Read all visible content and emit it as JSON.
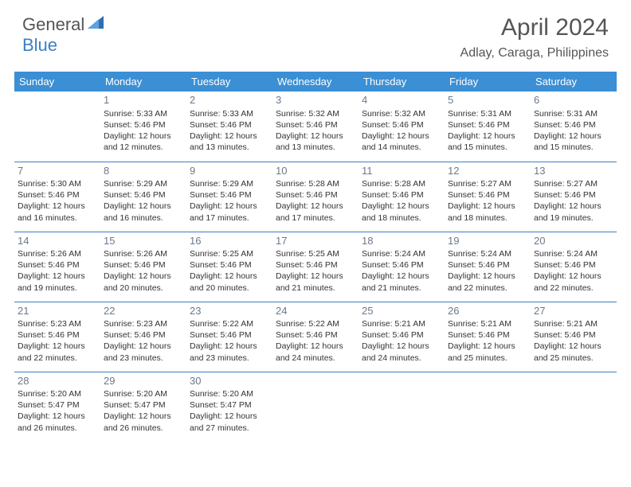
{
  "logo": {
    "part1": "General",
    "part2": "Blue"
  },
  "title": "April 2024",
  "location": "Adlay, Caraga, Philippines",
  "colors": {
    "header_bg": "#3b8fd4",
    "header_text": "#ffffff",
    "border": "#3b7fc4",
    "daynum": "#6b7a8a",
    "text": "#333333",
    "logo_gray": "#555555",
    "logo_blue": "#3b7fc4",
    "background": "#ffffff"
  },
  "weekdays": [
    "Sunday",
    "Monday",
    "Tuesday",
    "Wednesday",
    "Thursday",
    "Friday",
    "Saturday"
  ],
  "weeks": [
    [
      null,
      {
        "n": "1",
        "sr": "Sunrise: 5:33 AM",
        "ss": "Sunset: 5:46 PM",
        "d1": "Daylight: 12 hours",
        "d2": "and 12 minutes."
      },
      {
        "n": "2",
        "sr": "Sunrise: 5:33 AM",
        "ss": "Sunset: 5:46 PM",
        "d1": "Daylight: 12 hours",
        "d2": "and 13 minutes."
      },
      {
        "n": "3",
        "sr": "Sunrise: 5:32 AM",
        "ss": "Sunset: 5:46 PM",
        "d1": "Daylight: 12 hours",
        "d2": "and 13 minutes."
      },
      {
        "n": "4",
        "sr": "Sunrise: 5:32 AM",
        "ss": "Sunset: 5:46 PM",
        "d1": "Daylight: 12 hours",
        "d2": "and 14 minutes."
      },
      {
        "n": "5",
        "sr": "Sunrise: 5:31 AM",
        "ss": "Sunset: 5:46 PM",
        "d1": "Daylight: 12 hours",
        "d2": "and 15 minutes."
      },
      {
        "n": "6",
        "sr": "Sunrise: 5:31 AM",
        "ss": "Sunset: 5:46 PM",
        "d1": "Daylight: 12 hours",
        "d2": "and 15 minutes."
      }
    ],
    [
      {
        "n": "7",
        "sr": "Sunrise: 5:30 AM",
        "ss": "Sunset: 5:46 PM",
        "d1": "Daylight: 12 hours",
        "d2": "and 16 minutes."
      },
      {
        "n": "8",
        "sr": "Sunrise: 5:29 AM",
        "ss": "Sunset: 5:46 PM",
        "d1": "Daylight: 12 hours",
        "d2": "and 16 minutes."
      },
      {
        "n": "9",
        "sr": "Sunrise: 5:29 AM",
        "ss": "Sunset: 5:46 PM",
        "d1": "Daylight: 12 hours",
        "d2": "and 17 minutes."
      },
      {
        "n": "10",
        "sr": "Sunrise: 5:28 AM",
        "ss": "Sunset: 5:46 PM",
        "d1": "Daylight: 12 hours",
        "d2": "and 17 minutes."
      },
      {
        "n": "11",
        "sr": "Sunrise: 5:28 AM",
        "ss": "Sunset: 5:46 PM",
        "d1": "Daylight: 12 hours",
        "d2": "and 18 minutes."
      },
      {
        "n": "12",
        "sr": "Sunrise: 5:27 AM",
        "ss": "Sunset: 5:46 PM",
        "d1": "Daylight: 12 hours",
        "d2": "and 18 minutes."
      },
      {
        "n": "13",
        "sr": "Sunrise: 5:27 AM",
        "ss": "Sunset: 5:46 PM",
        "d1": "Daylight: 12 hours",
        "d2": "and 19 minutes."
      }
    ],
    [
      {
        "n": "14",
        "sr": "Sunrise: 5:26 AM",
        "ss": "Sunset: 5:46 PM",
        "d1": "Daylight: 12 hours",
        "d2": "and 19 minutes."
      },
      {
        "n": "15",
        "sr": "Sunrise: 5:26 AM",
        "ss": "Sunset: 5:46 PM",
        "d1": "Daylight: 12 hours",
        "d2": "and 20 minutes."
      },
      {
        "n": "16",
        "sr": "Sunrise: 5:25 AM",
        "ss": "Sunset: 5:46 PM",
        "d1": "Daylight: 12 hours",
        "d2": "and 20 minutes."
      },
      {
        "n": "17",
        "sr": "Sunrise: 5:25 AM",
        "ss": "Sunset: 5:46 PM",
        "d1": "Daylight: 12 hours",
        "d2": "and 21 minutes."
      },
      {
        "n": "18",
        "sr": "Sunrise: 5:24 AM",
        "ss": "Sunset: 5:46 PM",
        "d1": "Daylight: 12 hours",
        "d2": "and 21 minutes."
      },
      {
        "n": "19",
        "sr": "Sunrise: 5:24 AM",
        "ss": "Sunset: 5:46 PM",
        "d1": "Daylight: 12 hours",
        "d2": "and 22 minutes."
      },
      {
        "n": "20",
        "sr": "Sunrise: 5:24 AM",
        "ss": "Sunset: 5:46 PM",
        "d1": "Daylight: 12 hours",
        "d2": "and 22 minutes."
      }
    ],
    [
      {
        "n": "21",
        "sr": "Sunrise: 5:23 AM",
        "ss": "Sunset: 5:46 PM",
        "d1": "Daylight: 12 hours",
        "d2": "and 22 minutes."
      },
      {
        "n": "22",
        "sr": "Sunrise: 5:23 AM",
        "ss": "Sunset: 5:46 PM",
        "d1": "Daylight: 12 hours",
        "d2": "and 23 minutes."
      },
      {
        "n": "23",
        "sr": "Sunrise: 5:22 AM",
        "ss": "Sunset: 5:46 PM",
        "d1": "Daylight: 12 hours",
        "d2": "and 23 minutes."
      },
      {
        "n": "24",
        "sr": "Sunrise: 5:22 AM",
        "ss": "Sunset: 5:46 PM",
        "d1": "Daylight: 12 hours",
        "d2": "and 24 minutes."
      },
      {
        "n": "25",
        "sr": "Sunrise: 5:21 AM",
        "ss": "Sunset: 5:46 PM",
        "d1": "Daylight: 12 hours",
        "d2": "and 24 minutes."
      },
      {
        "n": "26",
        "sr": "Sunrise: 5:21 AM",
        "ss": "Sunset: 5:46 PM",
        "d1": "Daylight: 12 hours",
        "d2": "and 25 minutes."
      },
      {
        "n": "27",
        "sr": "Sunrise: 5:21 AM",
        "ss": "Sunset: 5:46 PM",
        "d1": "Daylight: 12 hours",
        "d2": "and 25 minutes."
      }
    ],
    [
      {
        "n": "28",
        "sr": "Sunrise: 5:20 AM",
        "ss": "Sunset: 5:47 PM",
        "d1": "Daylight: 12 hours",
        "d2": "and 26 minutes."
      },
      {
        "n": "29",
        "sr": "Sunrise: 5:20 AM",
        "ss": "Sunset: 5:47 PM",
        "d1": "Daylight: 12 hours",
        "d2": "and 26 minutes."
      },
      {
        "n": "30",
        "sr": "Sunrise: 5:20 AM",
        "ss": "Sunset: 5:47 PM",
        "d1": "Daylight: 12 hours",
        "d2": "and 27 minutes."
      },
      null,
      null,
      null,
      null
    ]
  ]
}
